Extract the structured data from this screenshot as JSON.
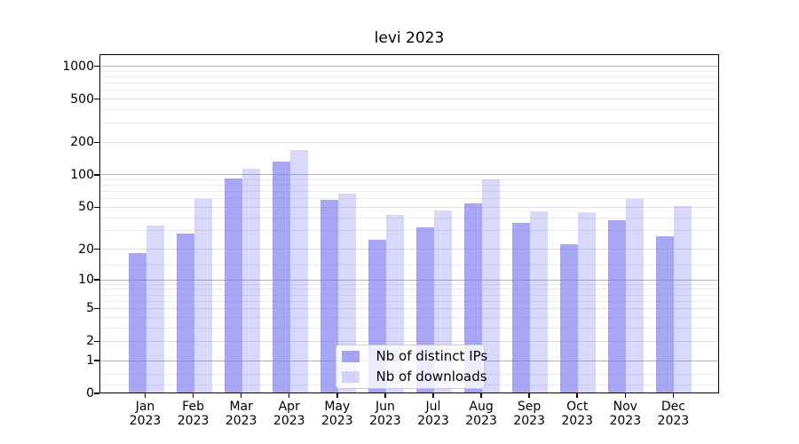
{
  "figure": {
    "background": "#ffffff"
  },
  "chart_data": {
    "type": "bar",
    "title": "levi 2023",
    "categories": [
      "Jan 2023",
      "Feb 2023",
      "Mar 2023",
      "Apr 2023",
      "May 2023",
      "Jun 2023",
      "Jul 2023",
      "Aug 2023",
      "Sep 2023",
      "Oct 2023",
      "Nov 2023",
      "Dec 2023"
    ],
    "x_tick_months": [
      "Jan",
      "Feb",
      "Mar",
      "Apr",
      "May",
      "Jun",
      "Jul",
      "Aug",
      "Sep",
      "Oct",
      "Nov",
      "Dec"
    ],
    "x_tick_year": "2023",
    "series": [
      {
        "name": "Nb of distinct IPs",
        "fill": "rgba(115,115,240,0.63)",
        "values": [
          18,
          28,
          91,
          130,
          58,
          24,
          32,
          53,
          35,
          22,
          37,
          26
        ]
      },
      {
        "name": "Nb of downloads",
        "fill": "rgba(115,115,240,0.28)",
        "values": [
          33,
          59,
          113,
          167,
          66,
          42,
          46,
          89,
          45,
          44,
          59,
          50
        ]
      }
    ],
    "xlabel": "",
    "ylabel": "",
    "yscale": "log1p",
    "ylim": [
      0,
      1295
    ],
    "yticks_labeled": [
      1000,
      500,
      200,
      100,
      50,
      20,
      10,
      5,
      2,
      1,
      0
    ],
    "yticks_major": [
      1,
      10,
      100,
      1000
    ],
    "yticks_minor": [
      0.2,
      0.5,
      3,
      4,
      6,
      7,
      8,
      9,
      14,
      30,
      40,
      60,
      70,
      80,
      90,
      300,
      400,
      600,
      700,
      800,
      900
    ],
    "grid": true,
    "legend_position": "lower center"
  },
  "colors": {
    "bar_base": "#7373f0",
    "grid_major": "#b3b3b3",
    "grid_labeled": "#e0e0e0",
    "grid_minor": "#ebebeb",
    "spine": "#000000",
    "text": "#000000",
    "legend_border": "#cccccc",
    "legend_background": "rgba(255,255,255,0.8)"
  }
}
